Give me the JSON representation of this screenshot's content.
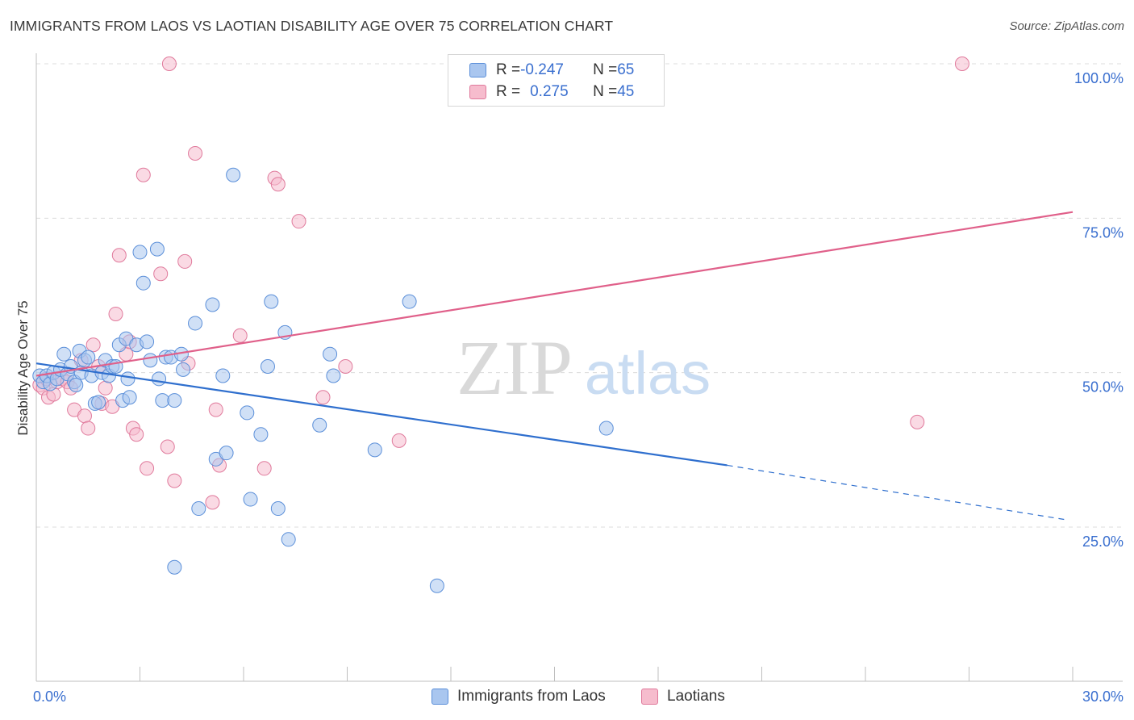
{
  "title": "IMMIGRANTS FROM LAOS VS LAOTIAN DISABILITY AGE OVER 75 CORRELATION CHART",
  "source": "Source: ZipAtlas.com",
  "watermark": {
    "zip": "ZIP",
    "atlas": "atlas"
  },
  "legend_top": {
    "rows": [
      {
        "r_label": "R = ",
        "r_value": "-0.247",
        "n_label": "N = ",
        "n_value": "65"
      },
      {
        "r_label": "R = ",
        "r_value": "0.275",
        "n_label": "N = ",
        "n_value": "45"
      }
    ]
  },
  "legend_bottom": [
    "Immigrants from Laos",
    "Laotians"
  ],
  "colors": {
    "blue_fill": "#a9c6ef",
    "blue_stroke": "#5b8fd9",
    "blue_line": "#2f6fce",
    "pink_fill": "#f6bccd",
    "pink_stroke": "#e07a9c",
    "pink_line": "#e0608a",
    "tick_label": "#3a6fcf",
    "grid": "#dcdcdc"
  },
  "chart_data": {
    "type": "scatter",
    "title": "IMMIGRANTS FROM LAOS VS LAOTIAN DISABILITY AGE OVER 75 CORRELATION CHART",
    "xlabel": "",
    "ylabel": "Disability Age Over 75",
    "xlim": [
      0,
      30
    ],
    "ylim": [
      0,
      102
    ],
    "x_tick_labels": [
      "0.0%",
      "30.0%"
    ],
    "y_ticks": [
      25,
      50,
      75,
      100
    ],
    "y_tick_labels": [
      "25.0%",
      "50.0%",
      "75.0%",
      "100.0%"
    ],
    "grid": true,
    "legend_position": "top-center",
    "series": [
      {
        "name": "Immigrants from Laos",
        "r": -0.247,
        "n": 65,
        "points": [
          [
            0.1,
            49.5
          ],
          [
            0.2,
            48.5
          ],
          [
            0.3,
            49.5
          ],
          [
            0.4,
            48.2
          ],
          [
            0.5,
            50.0
          ],
          [
            0.6,
            49.0
          ],
          [
            0.7,
            50.5
          ],
          [
            0.8,
            53.0
          ],
          [
            0.9,
            49.8
          ],
          [
            1.0,
            51.0
          ],
          [
            1.1,
            48.5
          ],
          [
            1.15,
            48.0
          ],
          [
            1.25,
            53.5
          ],
          [
            1.3,
            50.0
          ],
          [
            1.4,
            52.0
          ],
          [
            1.5,
            52.5
          ],
          [
            1.6,
            49.5
          ],
          [
            1.7,
            45.0
          ],
          [
            1.8,
            45.2
          ],
          [
            1.9,
            50.0
          ],
          [
            2.0,
            52.0
          ],
          [
            2.1,
            49.5
          ],
          [
            2.2,
            51.0
          ],
          [
            2.3,
            51.0
          ],
          [
            2.4,
            54.5
          ],
          [
            2.5,
            45.5
          ],
          [
            2.6,
            55.5
          ],
          [
            2.65,
            49.0
          ],
          [
            2.7,
            46.0
          ],
          [
            2.9,
            54.5
          ],
          [
            3.0,
            69.5
          ],
          [
            3.1,
            64.5
          ],
          [
            3.2,
            55.0
          ],
          [
            3.3,
            52.0
          ],
          [
            3.5,
            70.0
          ],
          [
            3.55,
            49.0
          ],
          [
            3.65,
            45.5
          ],
          [
            3.75,
            52.5
          ],
          [
            3.9,
            52.5
          ],
          [
            4.0,
            45.5
          ],
          [
            4.2,
            53.0
          ],
          [
            4.25,
            50.5
          ],
          [
            4.6,
            58.0
          ],
          [
            4.7,
            28.0
          ],
          [
            5.1,
            61.0
          ],
          [
            5.2,
            36.0
          ],
          [
            5.4,
            49.5
          ],
          [
            5.5,
            37.0
          ],
          [
            5.7,
            82.0
          ],
          [
            6.1,
            43.5
          ],
          [
            6.2,
            29.5
          ],
          [
            6.5,
            40.0
          ],
          [
            6.7,
            51.0
          ],
          [
            6.8,
            61.5
          ],
          [
            7.0,
            28.0
          ],
          [
            7.2,
            56.5
          ],
          [
            7.3,
            23.0
          ],
          [
            8.2,
            41.5
          ],
          [
            8.5,
            53.0
          ],
          [
            8.6,
            49.5
          ],
          [
            9.8,
            37.5
          ],
          [
            10.8,
            61.5
          ],
          [
            11.6,
            15.5
          ],
          [
            16.5,
            41.0
          ],
          [
            4.0,
            18.5
          ]
        ],
        "trend": {
          "x": [
            0,
            20
          ],
          "y": [
            51.5,
            35.0
          ]
        },
        "trend_dashed": {
          "x": [
            20,
            29.8
          ],
          "y": [
            35.0,
            26.2
          ]
        }
      },
      {
        "name": "Laotians",
        "r": 0.275,
        "n": 45,
        "points": [
          [
            0.1,
            48.0
          ],
          [
            0.2,
            47.5
          ],
          [
            0.3,
            49.0
          ],
          [
            0.35,
            46.0
          ],
          [
            0.5,
            46.5
          ],
          [
            0.6,
            48.5
          ],
          [
            0.75,
            49.0
          ],
          [
            0.9,
            48.5
          ],
          [
            1.0,
            47.5
          ],
          [
            1.1,
            44.0
          ],
          [
            1.3,
            52.0
          ],
          [
            1.4,
            43.0
          ],
          [
            1.5,
            41.0
          ],
          [
            1.65,
            54.5
          ],
          [
            1.8,
            51.0
          ],
          [
            1.9,
            45.0
          ],
          [
            2.0,
            47.5
          ],
          [
            2.2,
            44.5
          ],
          [
            2.3,
            59.5
          ],
          [
            2.4,
            69.0
          ],
          [
            2.6,
            53.0
          ],
          [
            2.7,
            55.0
          ],
          [
            2.8,
            41.0
          ],
          [
            2.9,
            40.0
          ],
          [
            3.1,
            82.0
          ],
          [
            3.2,
            34.5
          ],
          [
            3.6,
            66.0
          ],
          [
            3.8,
            38.0
          ],
          [
            3.85,
            100.0
          ],
          [
            4.0,
            32.5
          ],
          [
            4.3,
            68.0
          ],
          [
            4.4,
            51.5
          ],
          [
            4.6,
            85.5
          ],
          [
            5.1,
            29.0
          ],
          [
            5.2,
            44.0
          ],
          [
            5.3,
            35.0
          ],
          [
            5.9,
            56.0
          ],
          [
            6.6,
            34.5
          ],
          [
            6.9,
            81.5
          ],
          [
            7.0,
            80.5
          ],
          [
            7.6,
            74.5
          ],
          [
            8.3,
            46.0
          ],
          [
            8.95,
            51.0
          ],
          [
            10.5,
            39.0
          ],
          [
            25.5,
            42.0
          ]
        ],
        "trend": {
          "x": [
            0,
            30
          ],
          "y": [
            49.5,
            76.0
          ]
        }
      }
    ],
    "extra_points_blue_right": [
      [
        26.8,
        100.0
      ]
    ]
  }
}
